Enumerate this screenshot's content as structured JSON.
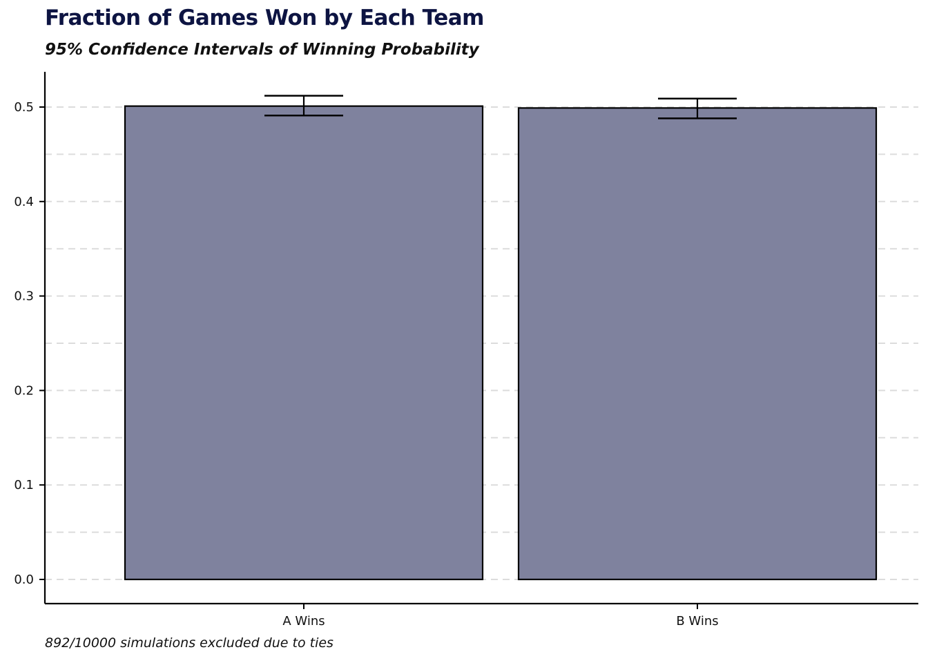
{
  "chart_data": {
    "type": "bar",
    "title": "Fraction of Games Won by Each Team",
    "subtitle": "95% Confidence Intervals of Winning Probability",
    "caption": "892/10000 simulations excluded due to ties",
    "categories": [
      "A Wins",
      "B Wins"
    ],
    "values": [
      0.501,
      0.499
    ],
    "ci_lower": [
      0.491,
      0.488
    ],
    "ci_upper": [
      0.512,
      0.509
    ],
    "xlabel": "",
    "ylabel": "",
    "ylim": [
      -0.025,
      0.537
    ],
    "yticks": [
      0.0,
      0.1,
      0.2,
      0.3,
      0.4,
      0.5
    ],
    "ytick_labels": [
      "0.0",
      "0.1",
      "0.2",
      "0.3",
      "0.4",
      "0.5"
    ],
    "grid": "horizontal dashed (major and minor)",
    "colors": {
      "bar_fill": "#7f829e",
      "bar_edge": "#000000",
      "title": "#0d1442",
      "grid": "#dcdcdc"
    }
  }
}
